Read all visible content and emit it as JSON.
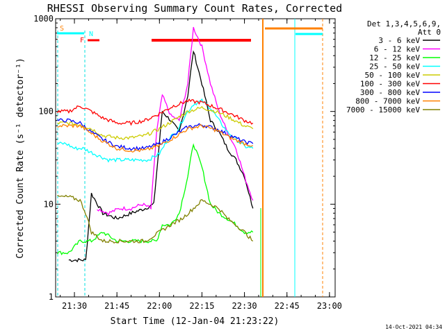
{
  "chart_data": {
    "type": "line",
    "title": "RHESSI Observing Summary Count Rates, Corrected",
    "xlabel": "Start Time (12-Jan-04 21:23:22)",
    "ylabel": "Corrected Count Rate (s⁻¹ detector⁻¹)",
    "y_scale": "log",
    "ylim": [
      1,
      1000
    ],
    "xlim": [
      "21:23:22",
      "23:02:00"
    ],
    "x_ticks": [
      "21:30",
      "21:45",
      "22:00",
      "22:15",
      "22:30",
      "22:45",
      "23:00"
    ],
    "y_ticks": [
      "1",
      "10",
      "100",
      "1000"
    ],
    "legend_header": [
      "Det 1,3,4,5,6,9,",
      "Att 0"
    ],
    "legend_position": "top-right",
    "footer_date": "14-Oct-2021 04:34",
    "flags": [
      {
        "label": "S",
        "color": "#ff8000"
      },
      {
        "label": "F",
        "color": "#ff0000"
      },
      {
        "label": "N",
        "color": "#00ffff"
      }
    ],
    "series": [
      {
        "name": "3 - 6 keV",
        "color": "#000000",
        "x": [
          "21:28",
          "21:31",
          "21:34",
          "21:36",
          "21:40",
          "21:45",
          "21:50",
          "21:55",
          "21:58",
          "22:01",
          "22:04",
          "22:07",
          "22:10",
          "22:12",
          "22:15",
          "22:18",
          "22:21",
          "22:24",
          "22:27",
          "22:30",
          "22:33"
        ],
        "y": [
          2.5,
          2.5,
          2.5,
          13,
          8,
          7,
          8,
          9,
          10,
          100,
          80,
          60,
          150,
          450,
          200,
          80,
          60,
          40,
          30,
          20,
          9
        ]
      },
      {
        "name": "6 - 12 keV",
        "color": "#ff00ff",
        "x": [
          "21:38",
          "21:42",
          "21:46",
          "21:50",
          "21:54",
          "21:57",
          "21:59",
          "22:01",
          "22:04",
          "22:07",
          "22:10",
          "22:12",
          "22:15",
          "22:18",
          "22:21",
          "22:24",
          "22:27",
          "22:30",
          "22:33"
        ],
        "y": [
          9,
          8,
          9,
          9,
          10,
          9,
          60,
          150,
          90,
          80,
          200,
          800,
          500,
          200,
          100,
          60,
          40,
          20,
          11
        ]
      },
      {
        "name": "12 - 25 keV",
        "color": "#00ff00",
        "x": [
          "21:24",
          "21:28",
          "21:32",
          "21:36",
          "21:40",
          "21:45",
          "21:50",
          "21:55",
          "21:59",
          "22:01",
          "22:04",
          "22:07",
          "22:10",
          "22:12",
          "22:15",
          "22:18",
          "22:21",
          "22:24",
          "22:27",
          "22:30",
          "22:33"
        ],
        "y": [
          3,
          3,
          4,
          4,
          5,
          4,
          4,
          4,
          4,
          6,
          6,
          8,
          20,
          45,
          25,
          10,
          8,
          7,
          6,
          5,
          5
        ]
      },
      {
        "name": "25 - 50 keV",
        "color": "#00ffff",
        "x": [
          "21:24",
          "21:27",
          "21:30",
          "21:33",
          "21:37",
          "21:42",
          "21:47",
          "21:52",
          "21:56",
          "22:00",
          "22:03",
          "22:06",
          "22:09",
          "22:12",
          "22:15",
          "22:18",
          "22:21",
          "22:24",
          "22:27",
          "22:30",
          "22:33"
        ],
        "y": [
          45,
          45,
          40,
          40,
          35,
          30,
          30,
          30,
          30,
          35,
          50,
          60,
          90,
          120,
          130,
          110,
          80,
          60,
          50,
          42,
          40
        ]
      },
      {
        "name": "50 - 100 keV",
        "color": "#cccc00",
        "x": [
          "21:24",
          "21:28",
          "21:32",
          "21:36",
          "21:40",
          "21:45",
          "21:50",
          "21:55",
          "22:00",
          "22:05",
          "22:10",
          "22:15",
          "22:20",
          "22:25",
          "22:30",
          "22:33"
        ],
        "y": [
          75,
          75,
          72,
          65,
          55,
          52,
          52,
          55,
          65,
          80,
          100,
          110,
          100,
          85,
          70,
          65
        ]
      },
      {
        "name": "100 - 300 keV",
        "color": "#ff0000",
        "x": [
          "21:24",
          "21:28",
          "21:32",
          "21:36",
          "21:40",
          "21:45",
          "21:50",
          "21:55",
          "22:00",
          "22:05",
          "22:10",
          "22:15",
          "22:20",
          "22:25",
          "22:30",
          "22:33"
        ],
        "y": [
          100,
          100,
          115,
          100,
          85,
          75,
          75,
          80,
          95,
          115,
          130,
          125,
          110,
          95,
          80,
          75
        ]
      },
      {
        "name": "300 - 800 keV",
        "color": "#0000ff",
        "x": [
          "21:24",
          "21:28",
          "21:32",
          "21:36",
          "21:40",
          "21:45",
          "21:50",
          "21:55",
          "22:00",
          "22:05",
          "22:10",
          "22:15",
          "22:20",
          "22:25",
          "22:30",
          "22:33"
        ],
        "y": [
          80,
          80,
          75,
          60,
          50,
          42,
          40,
          40,
          45,
          55,
          68,
          72,
          65,
          55,
          47,
          45
        ]
      },
      {
        "name": "800 - 7000 keV",
        "color": "#ff8000",
        "x": [
          "21:24",
          "21:28",
          "21:32",
          "21:36",
          "21:40",
          "21:45",
          "21:50",
          "21:55",
          "22:00",
          "22:05",
          "22:10",
          "22:15",
          "22:20",
          "22:25",
          "22:30",
          "22:33"
        ],
        "y": [
          70,
          70,
          70,
          58,
          48,
          40,
          38,
          38,
          43,
          52,
          65,
          70,
          63,
          52,
          45,
          43
        ]
      },
      {
        "name": "7000 - 15000 keV",
        "color": "#808000",
        "x": [
          "21:24",
          "21:28",
          "21:32",
          "21:34",
          "21:36",
          "21:40",
          "21:45",
          "21:50",
          "21:55",
          "22:00",
          "22:04",
          "22:08",
          "22:12",
          "22:15",
          "22:18",
          "22:21",
          "22:24",
          "22:27",
          "22:30",
          "22:33"
        ],
        "y": [
          12,
          12,
          11,
          8,
          5,
          4,
          4,
          4,
          4,
          5,
          6,
          7,
          9,
          11,
          10,
          9,
          7,
          6,
          5,
          4
        ]
      }
    ]
  }
}
